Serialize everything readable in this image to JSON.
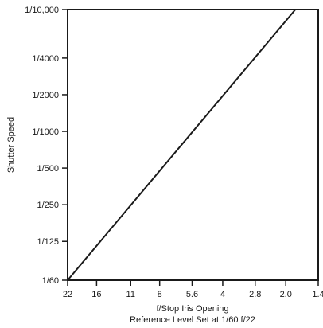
{
  "chart_data": {
    "type": "line",
    "title": "",
    "xlabel": "f/Stop  Iris  Opening",
    "subtitle": "Reference  Level  Set  at  1/60  f/22",
    "ylabel": "Shutter  Speed",
    "x_ticks": [
      "22",
      "16",
      "11",
      "8",
      "5.6",
      "4",
      "2.8",
      "2.0",
      "1.4"
    ],
    "y_ticks": [
      "1/60",
      "1/125",
      "1/250",
      "1/500",
      "1/1000",
      "1/2000",
      "1/4000",
      "1/10,000"
    ],
    "x_scale": "f-stops (logarithmic)",
    "y_scale": "logarithmic",
    "grid": false,
    "line_color": "#1a1a1a",
    "series": [
      {
        "x": [
          "22",
          "1.8"
        ],
        "y": [
          "1/60",
          "1/10,000"
        ]
      }
    ]
  }
}
